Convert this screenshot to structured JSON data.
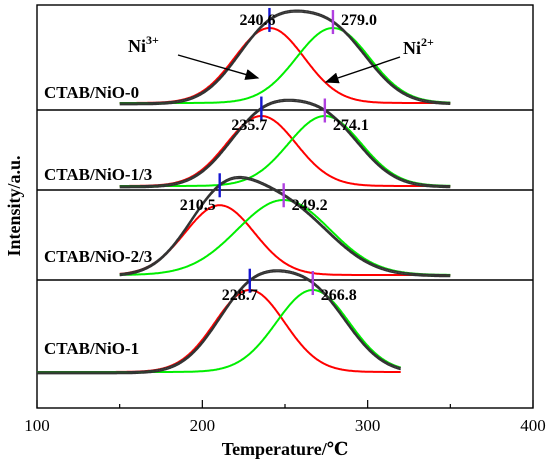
{
  "chart_data": {
    "type": "line",
    "xlabel": "Temperature/℃",
    "ylabel": "Intensity/a.u.",
    "xlim": [
      100,
      400
    ],
    "x_ticks": [
      100,
      200,
      300,
      400
    ],
    "x_tick_labels": [
      "100",
      "200",
      "300",
      "400"
    ],
    "colors": {
      "ni3_fit": "#ff0000",
      "ni2_fit": "#00ee00",
      "envelope": "#333333",
      "ni3_marker": "#1515d0",
      "ni2_marker": "#b040e0"
    },
    "annotations": {
      "ni3": "Ni",
      "ni3_sup": "3+",
      "ni2": "Ni",
      "ni2_sup": "2+"
    },
    "panels": [
      {
        "sample": "CTAB/NiO-0",
        "baseline_range": [
          150,
          350
        ],
        "peaks": [
          {
            "species": "Ni3+",
            "center": 240.6,
            "label": "240.6",
            "width": 21,
            "height": 1.0
          },
          {
            "species": "Ni2+",
            "center": 279.0,
            "label": "279.0",
            "width": 22,
            "height": 1.0
          }
        ]
      },
      {
        "sample": "CTAB/NiO-1/3",
        "baseline_range": [
          150,
          350
        ],
        "peaks": [
          {
            "species": "Ni3+",
            "center": 235.7,
            "label": "235.7",
            "width": 21,
            "height": 1.0
          },
          {
            "species": "Ni2+",
            "center": 274.1,
            "label": "274.1",
            "width": 22,
            "height": 1.0
          }
        ]
      },
      {
        "sample": "CTAB/NiO-2/3",
        "baseline_range": [
          150,
          350
        ],
        "peaks": [
          {
            "species": "Ni3+",
            "center": 210.5,
            "label": "210.5",
            "width": 21,
            "height": 0.93
          },
          {
            "species": "Ni2+",
            "center": 249.2,
            "label": "249.2",
            "width": 28,
            "height": 1.0
          }
        ]
      },
      {
        "sample": "CTAB/NiO-1",
        "baseline_range": [
          100,
          320
        ],
        "peaks": [
          {
            "species": "Ni3+",
            "center": 228.7,
            "label": "228.7",
            "width": 21,
            "height": 1.0
          },
          {
            "species": "Ni2+",
            "center": 266.8,
            "label": "266.8",
            "width": 22,
            "height": 1.0
          }
        ]
      }
    ]
  }
}
